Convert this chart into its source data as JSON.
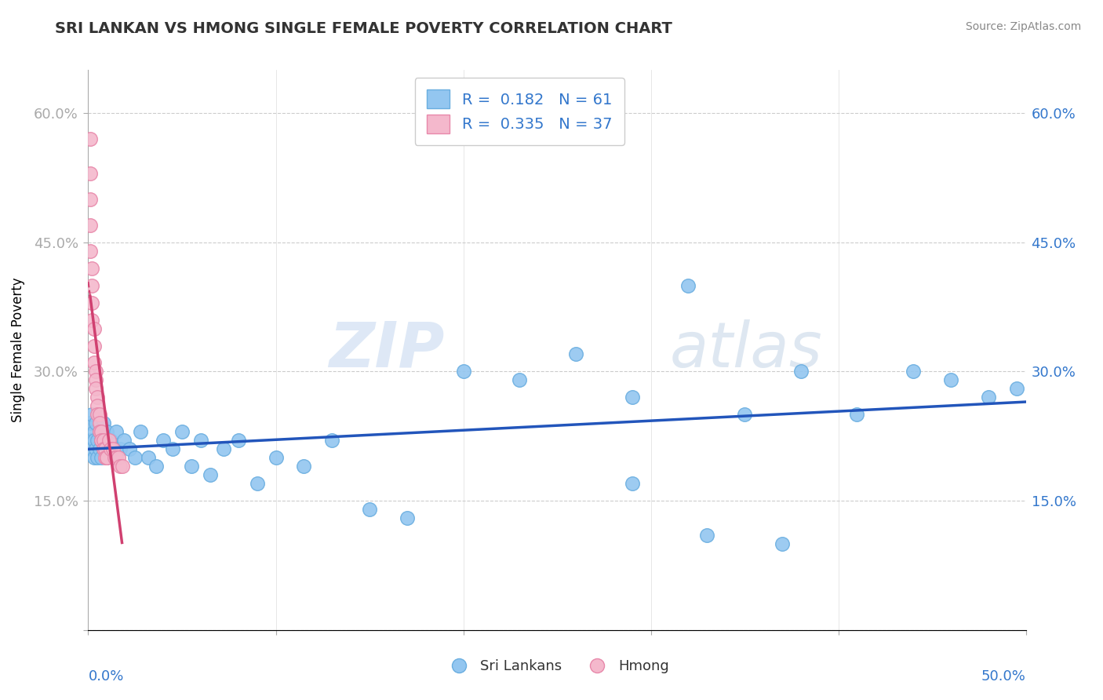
{
  "title": "SRI LANKAN VS HMONG SINGLE FEMALE POVERTY CORRELATION CHART",
  "source": "Source: ZipAtlas.com",
  "ylabel": "Single Female Poverty",
  "xlim": [
    0.0,
    0.5
  ],
  "ylim": [
    0.0,
    0.65
  ],
  "y_ticks": [
    0.0,
    0.15,
    0.3,
    0.45,
    0.6
  ],
  "y_tick_labels": [
    "",
    "15.0%",
    "30.0%",
    "45.0%",
    "60.0%"
  ],
  "sri_lankan_R": 0.182,
  "sri_lankan_N": 61,
  "hmong_R": 0.335,
  "hmong_N": 37,
  "sri_lankan_color": "#93c6f0",
  "sri_lankan_edge": "#6aaee0",
  "hmong_color": "#f4b8cc",
  "hmong_edge": "#e888aa",
  "sri_lankan_line_color": "#2255bb",
  "hmong_line_color": "#d04070",
  "legend_color": "#3377cc",
  "sl_x": [
    0.001,
    0.001,
    0.002,
    0.002,
    0.003,
    0.003,
    0.003,
    0.004,
    0.004,
    0.005,
    0.005,
    0.006,
    0.006,
    0.007,
    0.007,
    0.008,
    0.008,
    0.009,
    0.01,
    0.01,
    0.011,
    0.012,
    0.013,
    0.014,
    0.015,
    0.017,
    0.019,
    0.022,
    0.025,
    0.028,
    0.032,
    0.036,
    0.04,
    0.045,
    0.05,
    0.055,
    0.06,
    0.065,
    0.072,
    0.08,
    0.09,
    0.1,
    0.115,
    0.13,
    0.15,
    0.17,
    0.2,
    0.23,
    0.26,
    0.29,
    0.32,
    0.35,
    0.38,
    0.41,
    0.44,
    0.46,
    0.48,
    0.495,
    0.29,
    0.33,
    0.37
  ],
  "sl_y": [
    0.22,
    0.24,
    0.21,
    0.25,
    0.2,
    0.23,
    0.22,
    0.24,
    0.21,
    0.22,
    0.2,
    0.23,
    0.21,
    0.22,
    0.2,
    0.24,
    0.21,
    0.22,
    0.23,
    0.2,
    0.21,
    0.22,
    0.2,
    0.21,
    0.23,
    0.21,
    0.22,
    0.21,
    0.2,
    0.23,
    0.2,
    0.19,
    0.22,
    0.21,
    0.23,
    0.19,
    0.22,
    0.18,
    0.21,
    0.22,
    0.17,
    0.2,
    0.19,
    0.22,
    0.14,
    0.13,
    0.3,
    0.29,
    0.32,
    0.27,
    0.4,
    0.25,
    0.3,
    0.25,
    0.3,
    0.29,
    0.27,
    0.28,
    0.17,
    0.11,
    0.1
  ],
  "hmong_x": [
    0.001,
    0.001,
    0.001,
    0.001,
    0.001,
    0.002,
    0.002,
    0.002,
    0.002,
    0.003,
    0.003,
    0.003,
    0.004,
    0.004,
    0.004,
    0.005,
    0.005,
    0.005,
    0.006,
    0.006,
    0.006,
    0.007,
    0.007,
    0.008,
    0.008,
    0.009,
    0.009,
    0.01,
    0.01,
    0.011,
    0.012,
    0.013,
    0.014,
    0.015,
    0.016,
    0.017,
    0.018
  ],
  "hmong_y": [
    0.57,
    0.53,
    0.5,
    0.47,
    0.44,
    0.42,
    0.4,
    0.38,
    0.36,
    0.35,
    0.33,
    0.31,
    0.3,
    0.29,
    0.28,
    0.27,
    0.26,
    0.25,
    0.25,
    0.24,
    0.23,
    0.23,
    0.22,
    0.22,
    0.21,
    0.21,
    0.2,
    0.2,
    0.2,
    0.22,
    0.21,
    0.21,
    0.2,
    0.2,
    0.2,
    0.19,
    0.19
  ]
}
